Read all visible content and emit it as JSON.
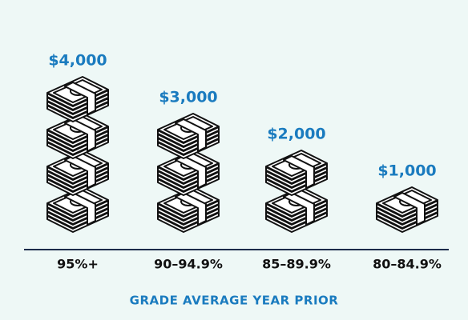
{
  "chart_data": {
    "type": "pictogram",
    "categories": [
      "95%+",
      "90–94.9%",
      "85–89.9%",
      "80–84.9%"
    ],
    "values": [
      4000,
      3000,
      2000,
      1000
    ],
    "value_labels": [
      "$4,000",
      "$3,000",
      "$2,000",
      "$1,000"
    ],
    "x_label": "GRADE AVERAGE YEAR PRIOR"
  }
}
